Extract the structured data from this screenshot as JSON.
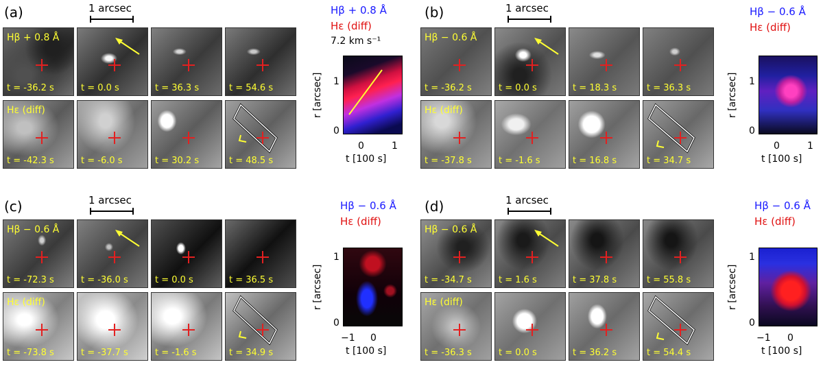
{
  "panels": [
    {
      "label": "(a)",
      "scalebar": "1 arcsec",
      "top_row_label": "Hβ + 0.8 Å",
      "bottom_row_label": "Hε (diff)",
      "top_times": [
        "t = -36.2 s",
        "t = 0.0 s",
        "t = 36.3 s",
        "t = 54.6 s"
      ],
      "bottom_times": [
        "t = -42.3 s",
        "t = -6.0 s",
        "t = 30.2 s",
        "t = 48.5 s"
      ],
      "legend_blue": "Hβ + 0.8 Å",
      "legend_red": "Hε (diff)",
      "legend_extra": "7.2 km s⁻¹",
      "ylabel": "r [arcsec]",
      "xlabel": "t [100 s]",
      "yticks": [
        "0",
        "1"
      ],
      "xticks": [
        "0",
        "1"
      ]
    },
    {
      "label": "(b)",
      "scalebar": "1 arcsec",
      "top_row_label": "Hβ − 0.6 Å",
      "bottom_row_label": "Hε (diff)",
      "top_times": [
        "t = -36.2 s",
        "t = 0.0 s",
        "t = 18.3 s",
        "t = 36.3 s"
      ],
      "bottom_times": [
        "t = -37.8 s",
        "t = -1.6 s",
        "t = 16.8 s",
        "t = 34.7 s"
      ],
      "legend_blue": "Hβ − 0.6 Å",
      "legend_red": "Hε (diff)",
      "ylabel": "r [arcsec]",
      "xlabel": "t [100 s]",
      "yticks": [
        "0",
        "1"
      ],
      "xticks": [
        "0",
        "1"
      ]
    },
    {
      "label": "(c)",
      "scalebar": "1 arcsec",
      "top_row_label": "Hβ − 0.6 Å",
      "bottom_row_label": "Hε (diff)",
      "top_times": [
        "t = -72.3 s",
        "t = -36.0 s",
        "t = 0.0 s",
        "t = 36.5 s"
      ],
      "bottom_times": [
        "t = -73.8 s",
        "t = -37.7 s",
        "t = -1.6 s",
        "t = 34.9 s"
      ],
      "legend_blue": "Hβ − 0.6 Å",
      "legend_red": "Hε (diff)",
      "ylabel": "r [arcsec]",
      "xlabel": "t [100 s]",
      "yticks": [
        "0",
        "1"
      ],
      "xticks": [
        "−1",
        "0"
      ]
    },
    {
      "label": "(d)",
      "scalebar": "1 arcsec",
      "top_row_label": "Hβ − 0.6 Å",
      "bottom_row_label": "Hε (diff)",
      "top_times": [
        "t = -34.7 s",
        "t = 1.6 s",
        "t = 37.8 s",
        "t = 55.8 s"
      ],
      "bottom_times": [
        "t = -36.3 s",
        "t = 0.0 s",
        "t = 36.2 s",
        "t = 54.4 s"
      ],
      "legend_blue": "Hβ − 0.6 Å",
      "legend_red": "Hε (diff)",
      "ylabel": "r [arcsec]",
      "xlabel": "t [100 s]",
      "yticks": [
        "0",
        "1"
      ],
      "xticks": [
        "−1",
        "0"
      ]
    }
  ],
  "colors": {
    "blue": "#1a1aff",
    "red": "#e01010",
    "label_yellow": "#ffff33",
    "marker_red": "#e32020"
  }
}
